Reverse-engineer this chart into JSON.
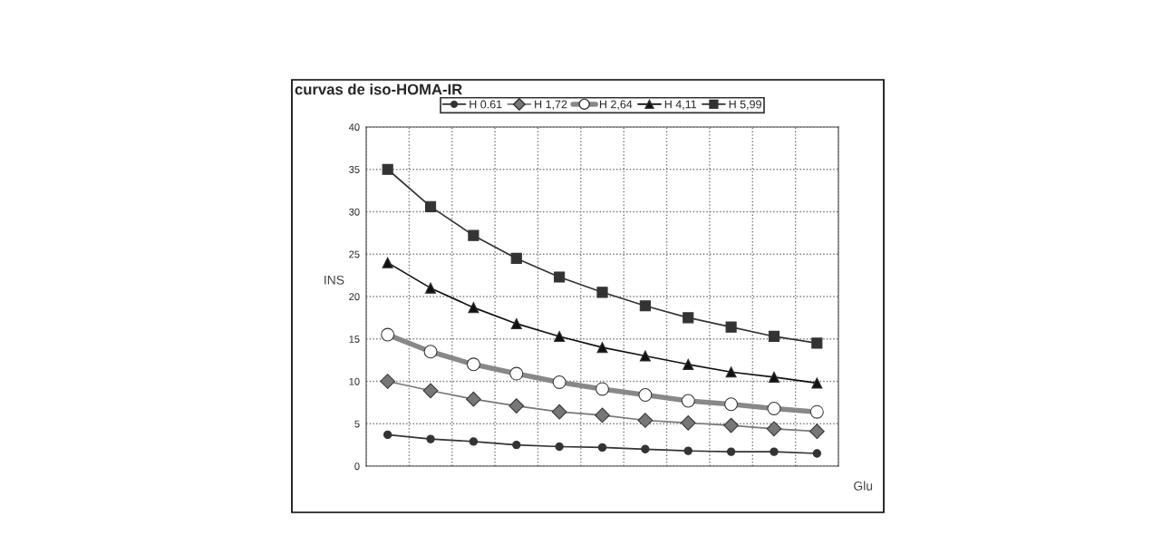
{
  "chart_data": {
    "type": "line",
    "title": "curvas de iso-HOMA-IR",
    "xlabel": "Glu",
    "ylabel": "INS",
    "categories": [
      null,
      null,
      null,
      null,
      null,
      null,
      null,
      null,
      null,
      null,
      null
    ],
    "series": [
      {
        "name": "H 0.61",
        "color": "#333333",
        "marker": "circle",
        "values": [
          3.7,
          3.2,
          2.9,
          2.5,
          2.3,
          2.2,
          2.0,
          1.8,
          1.7,
          1.7,
          1.5
        ]
      },
      {
        "name": "H 1,72",
        "color": "#777777",
        "marker": "diamond",
        "values": [
          10,
          8.9,
          7.9,
          7.1,
          6.4,
          6.0,
          5.4,
          5.1,
          4.8,
          4.4,
          4.1
        ]
      },
      {
        "name": "H 2,64",
        "color": "#888888",
        "marker": "circle",
        "values": [
          15.5,
          13.5,
          12.0,
          10.9,
          9.9,
          9.1,
          8.4,
          7.7,
          7.3,
          6.8,
          6.4
        ]
      },
      {
        "name": "H 4,11",
        "color": "#111111",
        "marker": "triangle",
        "values": [
          24,
          21,
          18.7,
          16.8,
          15.3,
          14.0,
          13.0,
          12.0,
          11.1,
          10.5,
          9.8
        ]
      },
      {
        "name": "H 5,99",
        "color": "#333333",
        "marker": "square",
        "values": [
          35,
          30.6,
          27.2,
          24.5,
          22.3,
          20.5,
          18.9,
          17.5,
          16.4,
          15.3,
          14.5
        ]
      }
    ],
    "ylim": [
      0,
      40
    ],
    "yticks": [
      0,
      5,
      10,
      15,
      20,
      25,
      30,
      35,
      40
    ],
    "grid": true,
    "legend": "top",
    "tick_labels": "y",
    "line_style": "solid"
  }
}
